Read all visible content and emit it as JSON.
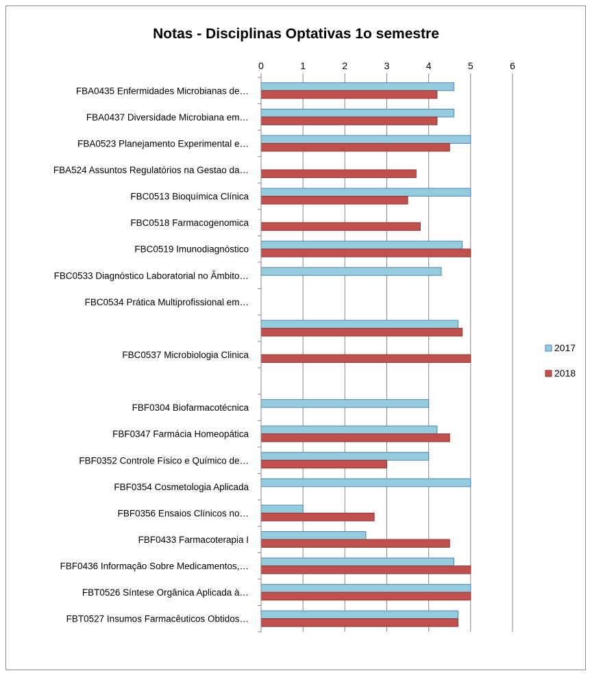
{
  "chart_data": {
    "type": "bar",
    "orientation": "horizontal",
    "title": "Notas - Disciplinas Optativas 1o semestre",
    "xlim": [
      0,
      6
    ],
    "xticks": [
      0,
      1,
      2,
      3,
      4,
      5,
      6
    ],
    "grid": true,
    "legend_position": "right",
    "categories": [
      "FBA0435 Enfermidades Microbianas de…",
      "FBA0437 Diversidade Microbiana em…",
      "FBA0523 Planejamento Experimental e…",
      "FBA524 Assuntos Regulatórios na Gestao da…",
      "FBC0513 Bioquímica Clínica",
      "FBC0518 Farmacogenomica",
      "FBC0519 Imunodiagnóstico",
      "FBC0533 Diagnóstico Laboratorial no Âmbito…",
      "FBC0534 Prática Multiprofissional em…",
      "",
      "FBC0537 Microbiologia Clinica",
      "",
      "FBF0304 Biofarmacotécnica",
      "FBF0347 Farmácia Homeopática",
      "FBF0352 Controle Físico e Químico de…",
      "FBF0354 Cosmetologia Aplicada",
      "FBF0356 Ensaios Clínicos no…",
      "FBF0433 Farmacoterapia I",
      "FBF0436 Informação Sobre Medicamentos,…",
      "FBT0526 Síntese Orgânica Aplicada à…",
      "FBT0527 Insumos Farmacêuticos Obtidos…"
    ],
    "series": [
      {
        "name": "2017",
        "color": "#93cddd",
        "border": "#4f81bd",
        "values": [
          4.6,
          4.6,
          5.0,
          null,
          5.0,
          null,
          4.8,
          4.3,
          null,
          4.7,
          null,
          null,
          4.0,
          4.2,
          4.0,
          5.0,
          1.0,
          2.5,
          4.6,
          5.0,
          4.7
        ]
      },
      {
        "name": "2018",
        "color": "#c0504d",
        "border": "#943634",
        "values": [
          4.2,
          4.2,
          4.5,
          3.7,
          3.5,
          3.8,
          5.0,
          null,
          null,
          4.8,
          5.0,
          null,
          null,
          4.5,
          3.0,
          null,
          2.7,
          4.5,
          5.0,
          5.0,
          4.7
        ]
      }
    ]
  }
}
